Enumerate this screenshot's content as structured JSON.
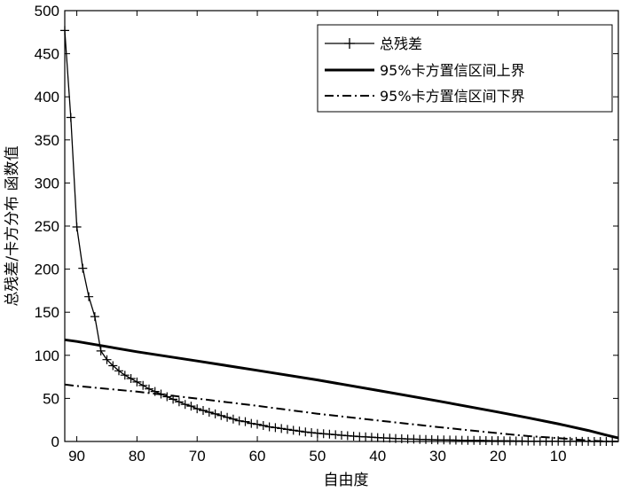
{
  "chart_data": {
    "type": "line",
    "xlabel": "自由度",
    "ylabel": "总残差/卡方分布 函数值",
    "xlim": [
      92,
      0
    ],
    "ylim": [
      0,
      500
    ],
    "x_reversed": true,
    "xticks": [
      90,
      80,
      70,
      60,
      50,
      40,
      30,
      20,
      10
    ],
    "yticks": [
      0,
      50,
      100,
      150,
      200,
      250,
      300,
      350,
      400,
      450,
      500
    ],
    "grid": false,
    "legend_position": "top-right",
    "series": [
      {
        "name": "总残差",
        "style": "solid-plus-markers",
        "color": "#000000",
        "x": [
          92,
          91,
          90,
          89,
          88,
          87,
          86,
          85,
          84,
          83,
          82,
          81,
          80,
          79,
          78,
          77,
          76,
          75,
          74,
          73,
          72,
          71,
          70,
          69,
          68,
          67,
          66,
          65,
          64,
          63,
          62,
          61,
          60,
          59,
          58,
          57,
          56,
          55,
          54,
          53,
          52,
          51,
          50,
          49,
          48,
          47,
          46,
          45,
          44,
          43,
          42,
          41,
          40,
          39,
          38,
          37,
          36,
          35,
          34,
          33,
          32,
          31,
          30,
          29,
          28,
          27,
          26,
          25,
          24,
          23,
          22,
          21,
          20,
          19,
          18,
          17,
          16,
          15,
          14,
          13,
          12,
          11,
          10,
          9,
          8,
          7,
          6,
          5,
          4,
          3,
          2,
          1
        ],
        "values": [
          477,
          376,
          249,
          201,
          168,
          145,
          105,
          95,
          88,
          82,
          77,
          73,
          69,
          65,
          61,
          58,
          55,
          52,
          49,
          46,
          43,
          41,
          38,
          36,
          34,
          32,
          30,
          28,
          26,
          24,
          23,
          21,
          20,
          18.5,
          17,
          16,
          15,
          14,
          13,
          12,
          11,
          10.3,
          9.6,
          9,
          8.4,
          7.8,
          7.2,
          6.7,
          6.2,
          5.7,
          5.3,
          4.9,
          4.5,
          4.1,
          3.8,
          3.5,
          3.2,
          2.9,
          2.7,
          2.5,
          2.3,
          2.1,
          1.9,
          1.7,
          1.6,
          1.5,
          1.4,
          1.3,
          1.2,
          1.1,
          1,
          0.9,
          0.8,
          0.7,
          0.6,
          0.5,
          0.5,
          0.4,
          0.4,
          0.3,
          0.3,
          0.2,
          0.2,
          0.2,
          0.1,
          0.1,
          0.1,
          0.1,
          0,
          0,
          0,
          0
        ]
      },
      {
        "name": "95%卡方置信区间上界",
        "style": "solid-thick",
        "color": "#000000",
        "x": [
          92,
          90,
          80,
          70,
          60,
          50,
          40,
          30,
          20,
          15,
          10,
          5,
          2,
          0
        ],
        "values": [
          118,
          116,
          104.1,
          93.4,
          82.5,
          71.4,
          59.3,
          47,
          34.2,
          27.5,
          20.5,
          12.8,
          7.4,
          4
        ]
      },
      {
        "name": "95%卡方置信区间下界",
        "style": "dash-dot",
        "color": "#000000",
        "x": [
          92,
          90,
          80,
          70,
          60,
          50,
          40,
          30,
          20,
          15,
          10,
          5,
          2,
          0
        ],
        "values": [
          66,
          64.4,
          57.8,
          49.8,
          41.4,
          32.2,
          24.4,
          16.8,
          9.6,
          6.3,
          3.9,
          1.1,
          0.1,
          0
        ]
      }
    ]
  }
}
